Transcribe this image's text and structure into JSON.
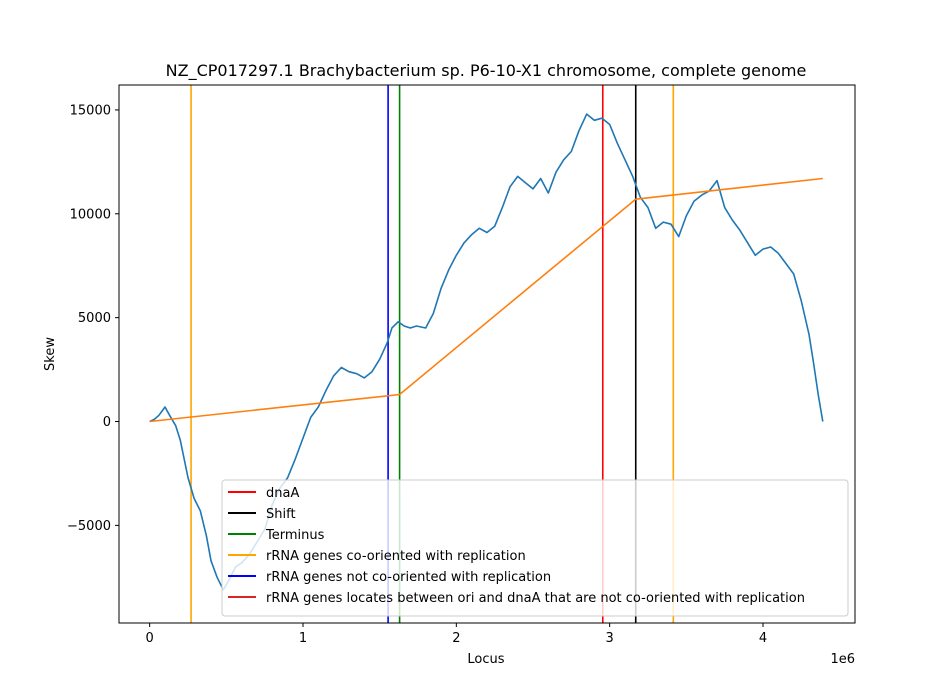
{
  "chart_data": {
    "type": "line",
    "title": "NZ_CP017297.1 Brachybacterium sp. P6-10-X1 chromosome, complete genome",
    "xlabel": "Locus",
    "ylabel": "Skew",
    "x_offset_label": "1e6",
    "xlim": [
      -200000,
      4600000
    ],
    "ylim": [
      -9700,
      16200
    ],
    "xticks": [
      {
        "value": 0,
        "label": "0"
      },
      {
        "value": 1000000,
        "label": "1"
      },
      {
        "value": 2000000,
        "label": "2"
      },
      {
        "value": 3000000,
        "label": "3"
      },
      {
        "value": 4000000,
        "label": "4"
      }
    ],
    "yticks": [
      {
        "value": -5000,
        "label": "−5000"
      },
      {
        "value": 0,
        "label": "0"
      },
      {
        "value": 5000,
        "label": "5000"
      },
      {
        "value": 10000,
        "label": "10000"
      },
      {
        "value": 15000,
        "label": "15000"
      }
    ],
    "grid": false,
    "legend_position": "lower-right",
    "series": [
      {
        "color": "#1f77b4",
        "x": [
          0,
          30000,
          60000,
          100000,
          130000,
          170000,
          200000,
          250000,
          290000,
          330000,
          370000,
          400000,
          440000,
          480000,
          520000,
          560000,
          600000,
          650000,
          700000,
          750000,
          800000,
          850000,
          900000,
          950000,
          1000000,
          1050000,
          1100000,
          1150000,
          1200000,
          1250000,
          1300000,
          1350000,
          1400000,
          1450000,
          1500000,
          1550000,
          1580000,
          1620000,
          1660000,
          1700000,
          1740000,
          1800000,
          1850000,
          1900000,
          1950000,
          2000000,
          2050000,
          2100000,
          2150000,
          2200000,
          2250000,
          2300000,
          2350000,
          2400000,
          2450000,
          2500000,
          2550000,
          2600000,
          2650000,
          2700000,
          2750000,
          2800000,
          2850000,
          2900000,
          2950000,
          3000000,
          3050000,
          3100000,
          3150000,
          3200000,
          3250000,
          3300000,
          3350000,
          3400000,
          3450000,
          3500000,
          3550000,
          3600000,
          3650000,
          3700000,
          3750000,
          3800000,
          3850000,
          3900000,
          3950000,
          4000000,
          4050000,
          4100000,
          4150000,
          4200000,
          4250000,
          4300000,
          4330000,
          4360000,
          4390000
        ],
        "values": [
          0,
          100,
          300,
          700,
          300,
          -200,
          -900,
          -2700,
          -3700,
          -4300,
          -5500,
          -6700,
          -7500,
          -8100,
          -7600,
          -7000,
          -6800,
          -6400,
          -5800,
          -5200,
          -4000,
          -3200,
          -2700,
          -1800,
          -800,
          200,
          700,
          1500,
          2200,
          2600,
          2400,
          2300,
          2100,
          2400,
          3000,
          3800,
          4500,
          4800,
          4600,
          4500,
          4600,
          4500,
          5200,
          6400,
          7300,
          8000,
          8600,
          9000,
          9300,
          9100,
          9400,
          10300,
          11300,
          11800,
          11500,
          11200,
          11700,
          11000,
          12000,
          12600,
          13000,
          14000,
          14800,
          14500,
          14600,
          14300,
          13400,
          12600,
          11800,
          10800,
          10300,
          9300,
          9600,
          9500,
          8900,
          9900,
          10600,
          10900,
          11100,
          11600,
          10300,
          9700,
          9200,
          8600,
          8000,
          8300,
          8400,
          8100,
          7600,
          7100,
          5800,
          4200,
          2800,
          1300,
          0
        ]
      },
      {
        "color": "#ff7f0e",
        "x": [
          0,
          1630000,
          3170000,
          4390000
        ],
        "values": [
          0,
          1300,
          10700,
          11700
        ]
      }
    ],
    "vertical_lines": [
      {
        "name": "rRNA genes co-oriented with replication",
        "x": 270000,
        "color": "#ffa500"
      },
      {
        "name": "rRNA genes not co-oriented with replication",
        "x": 1555000,
        "color": "#0000ff"
      },
      {
        "name": "Terminus",
        "x": 1630000,
        "color": "#008000"
      },
      {
        "name": "dnaA",
        "x": 2955000,
        "color": "#ff0000"
      },
      {
        "name": "Shift",
        "x": 3170000,
        "color": "#000000"
      },
      {
        "name": "rRNA genes co-oriented with replication",
        "x": 3415000,
        "color": "#ffa500"
      }
    ],
    "legend": [
      {
        "label": "dnaA",
        "color": "#ff0000"
      },
      {
        "label": "Shift",
        "color": "#000000"
      },
      {
        "label": "Terminus",
        "color": "#008000"
      },
      {
        "label": "rRNA genes co-oriented with replication",
        "color": "#ffa500"
      },
      {
        "label": "rRNA genes not co-oriented with replication",
        "color": "#0000ff"
      },
      {
        "label": "rRNA genes locates between ori and dnaA that are not co-oriented with replication",
        "color": "#d62728"
      }
    ]
  }
}
